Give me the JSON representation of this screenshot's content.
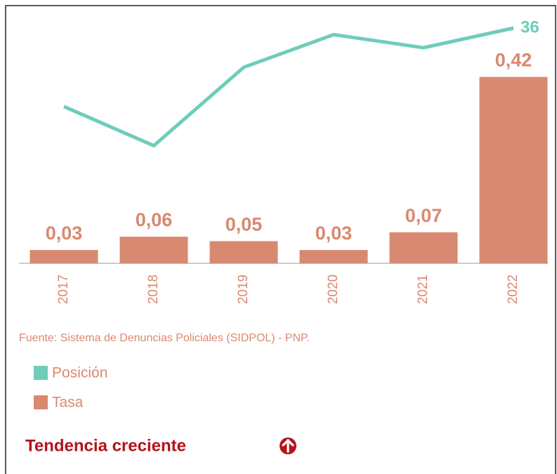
{
  "chart_data": {
    "type": "bar_line",
    "categories": [
      "2017",
      "2018",
      "2019",
      "2020",
      "2021",
      "2022"
    ],
    "series": [
      {
        "name": "Posición",
        "color": "#6ecdb9",
        "type": "line",
        "axis": "y2",
        "values": [
          24,
          18,
          30,
          35,
          33,
          36
        ]
      },
      {
        "name": "Tasa",
        "color": "#d98970",
        "type": "bar",
        "values": [
          0.03,
          0.06,
          0.05,
          0.03,
          0.07,
          0.42
        ],
        "value_labels": [
          "0,03",
          "0,06",
          "0,05",
          "0,03",
          "0,07",
          "0,42"
        ]
      }
    ],
    "ylim": [
      0,
      0.53
    ],
    "y2lim": [
      0,
      36
    ],
    "source": "Fuente: Sistema de Denuncias Policiales (SIDPOL) - PNP.",
    "trend": "Tendencia creciente"
  }
}
